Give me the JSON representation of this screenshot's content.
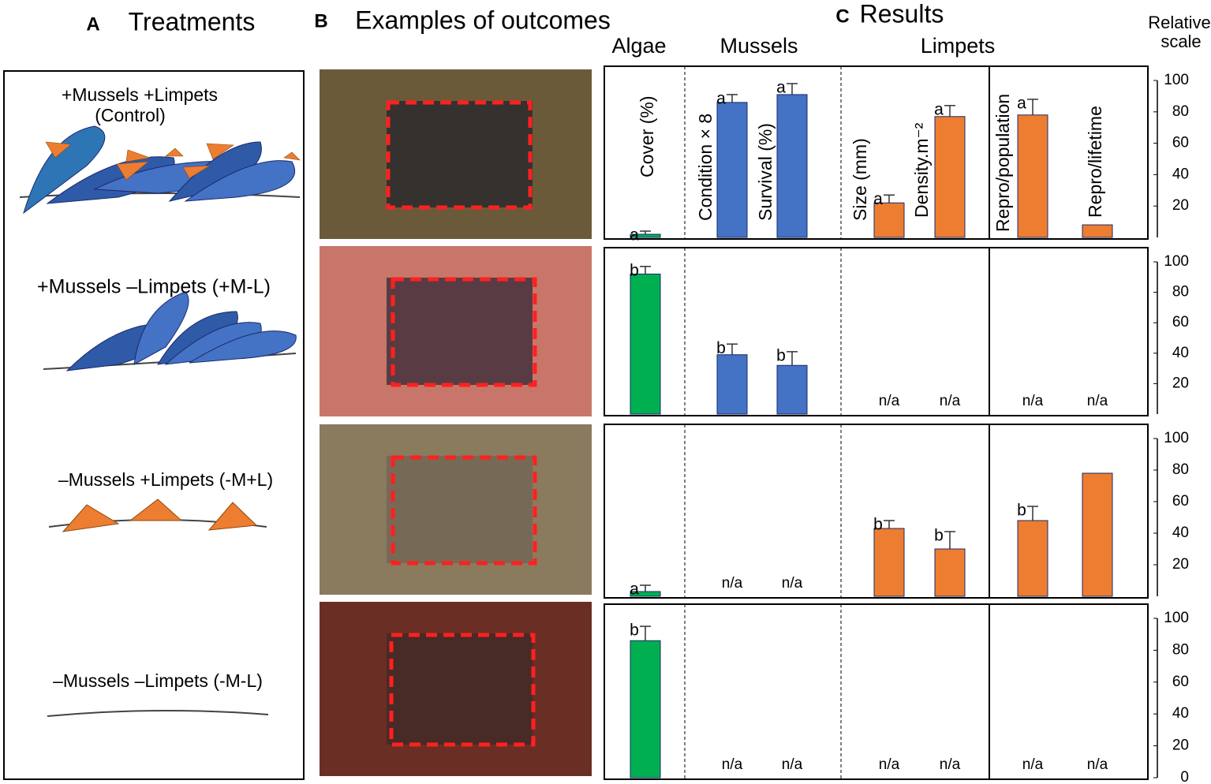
{
  "panels": {
    "A": {
      "letter": "A",
      "title": "Treatments"
    },
    "B": {
      "letter": "B",
      "title": "Examples of outcomes"
    },
    "C": {
      "letter": "C",
      "title": "Results"
    }
  },
  "treatments": [
    "+Mussels +Limpets",
    "(Control)",
    "+Mussels –Limpets (+M-L)",
    "–Mussels +Limpets (-M+L)",
    "–Mussels –Limpets (-M-L)"
  ],
  "column_groups": [
    "Algae",
    "Mussels",
    "Limpets"
  ],
  "axis_title": [
    "Relative",
    "scale"
  ],
  "chart_data": [
    {
      "type": "bar",
      "categories": [
        "Cover (%)",
        "Condition × 8",
        "Survival (%)",
        "Size (mm)",
        "Density.m⁻²",
        "Repro/population",
        "Repro/lifetime"
      ],
      "colors": [
        "#00b050",
        "#4472c4",
        "#4472c4",
        "#ed7d31",
        "#ed7d31",
        "#ed7d31",
        "#ed7d31"
      ],
      "values": [
        2,
        86,
        91,
        22,
        77,
        78,
        8
      ],
      "errors": [
        2,
        5,
        7,
        5,
        7,
        10,
        null
      ],
      "letters": [
        "a",
        "a",
        "a",
        "a",
        "a",
        "a",
        null
      ],
      "value_labels": [
        null,
        null,
        null,
        null,
        null,
        null,
        null
      ],
      "ylim": [
        0,
        100
      ],
      "yticks": [
        20,
        40,
        60,
        80,
        100
      ]
    },
    {
      "type": "bar",
      "categories": [
        null,
        null,
        null,
        null,
        null,
        null,
        null
      ],
      "colors": [
        "#00b050",
        "#4472c4",
        "#4472c4",
        "#ed7d31",
        "#ed7d31",
        "#ed7d31",
        "#ed7d31"
      ],
      "values": [
        92,
        39,
        32,
        null,
        null,
        null,
        null
      ],
      "errors": [
        5,
        7,
        9,
        null,
        null,
        null,
        null
      ],
      "letters": [
        "b",
        "b",
        "b",
        null,
        null,
        null,
        null
      ],
      "value_labels": [
        null,
        null,
        null,
        "n/a",
        "n/a",
        "n/a",
        "n/a"
      ],
      "ylim": [
        0,
        100
      ],
      "yticks": [
        20,
        40,
        60,
        80,
        100
      ]
    },
    {
      "type": "bar",
      "categories": [
        null,
        null,
        null,
        null,
        null,
        null,
        null
      ],
      "colors": [
        "#00b050",
        "#4472c4",
        "#4472c4",
        "#ed7d31",
        "#ed7d31",
        "#ed7d31",
        "#ed7d31"
      ],
      "values": [
        3,
        null,
        null,
        43,
        30,
        48,
        78
      ],
      "errors": [
        4,
        null,
        null,
        5,
        11,
        9,
        null
      ],
      "letters": [
        "a",
        null,
        null,
        "b",
        "b",
        "b",
        null
      ],
      "value_labels": [
        null,
        "n/a",
        "n/a",
        null,
        null,
        null,
        null
      ],
      "ylim": [
        0,
        100
      ],
      "yticks": [
        20,
        40,
        60,
        80,
        100
      ]
    },
    {
      "type": "bar",
      "categories": [
        null,
        null,
        null,
        null,
        null,
        null,
        null
      ],
      "colors": [
        "#00b050",
        "#4472c4",
        "#4472c4",
        "#ed7d31",
        "#ed7d31",
        "#ed7d31",
        "#ed7d31"
      ],
      "values": [
        86,
        null,
        null,
        null,
        null,
        null,
        null
      ],
      "errors": [
        9,
        null,
        null,
        null,
        null,
        null,
        null
      ],
      "letters": [
        "b",
        null,
        null,
        null,
        null,
        null,
        null
      ],
      "value_labels": [
        null,
        "n/a",
        "n/a",
        "n/a",
        "n/a",
        "n/a",
        "n/a"
      ],
      "ylim": [
        0,
        100
      ],
      "yticks": [
        0,
        20,
        40,
        60,
        80,
        100
      ]
    }
  ]
}
